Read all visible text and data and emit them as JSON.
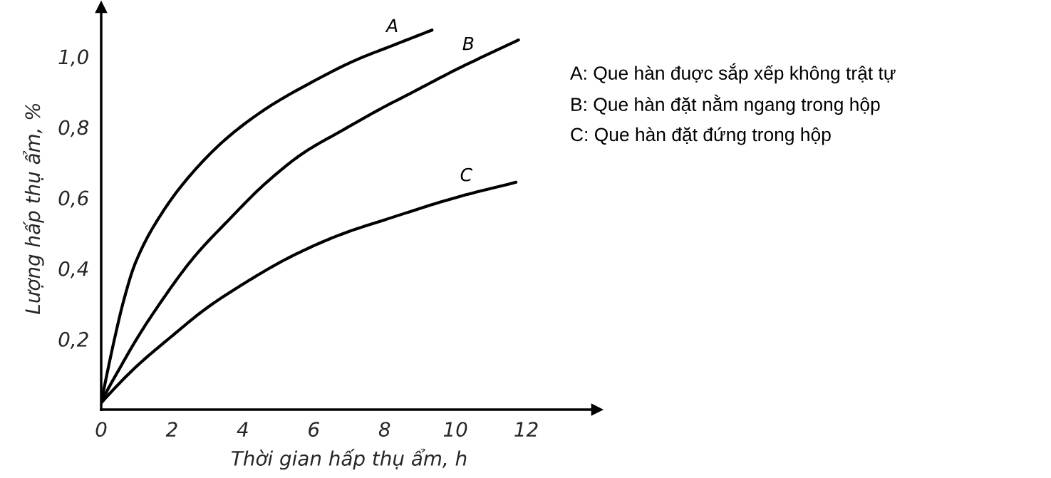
{
  "chart_data": {
    "type": "line",
    "xlabel": "Thời gian hấp thụ ẩm, h",
    "ylabel": "Lượng hấp thụ ẩm, %",
    "xlim": [
      0,
      14
    ],
    "ylim": [
      0,
      1.14
    ],
    "xticks": [
      0,
      2,
      4,
      6,
      8,
      10,
      12
    ],
    "yticks": [
      {
        "value": 0.2,
        "label": "0,2"
      },
      {
        "value": 0.4,
        "label": "0,4"
      },
      {
        "value": 0.6,
        "label": "0,6"
      },
      {
        "value": 0.8,
        "label": "0,8"
      },
      {
        "value": 1.0,
        "label": "1,0"
      }
    ],
    "line_style": "solid",
    "series": [
      {
        "name": "A",
        "color": "#000000",
        "x": [
          0,
          0.16,
          0.36,
          0.63,
          0.96,
          1.77,
          2.63,
          3.56,
          4.71,
          5.9,
          7.19,
          8.27,
          9.34
        ],
        "values": [
          0.02,
          0.099,
          0.193,
          0.307,
          0.414,
          0.565,
          0.677,
          0.77,
          0.856,
          0.925,
          0.99,
          1.033,
          1.075
        ]
      },
      {
        "name": "B",
        "color": "#000000",
        "x": [
          0,
          0.16,
          0.5,
          0.96,
          1.43,
          2.63,
          3.56,
          4.64,
          5.71,
          6.79,
          8.0,
          8.62,
          10.06,
          11.78
        ],
        "values": [
          0.02,
          0.052,
          0.113,
          0.193,
          0.267,
          0.433,
          0.533,
          0.641,
          0.727,
          0.79,
          0.858,
          0.89,
          0.965,
          1.047
        ]
      },
      {
        "name": "C",
        "color": "#000000",
        "x": [
          0,
          0.3,
          0.96,
          1.97,
          2.97,
          3.98,
          5.35,
          6.79,
          8.08,
          10.06,
          11.71
        ],
        "values": [
          0.019,
          0.052,
          0.119,
          0.206,
          0.287,
          0.354,
          0.433,
          0.497,
          0.54,
          0.602,
          0.644
        ]
      }
    ],
    "annotations": [
      "A: Que hàn đuợc sắp xếp không trật tự",
      "B: Que hàn đặt nằm ngang trong hộp",
      "C: Que hàn đặt đứng trong hộp"
    ]
  }
}
